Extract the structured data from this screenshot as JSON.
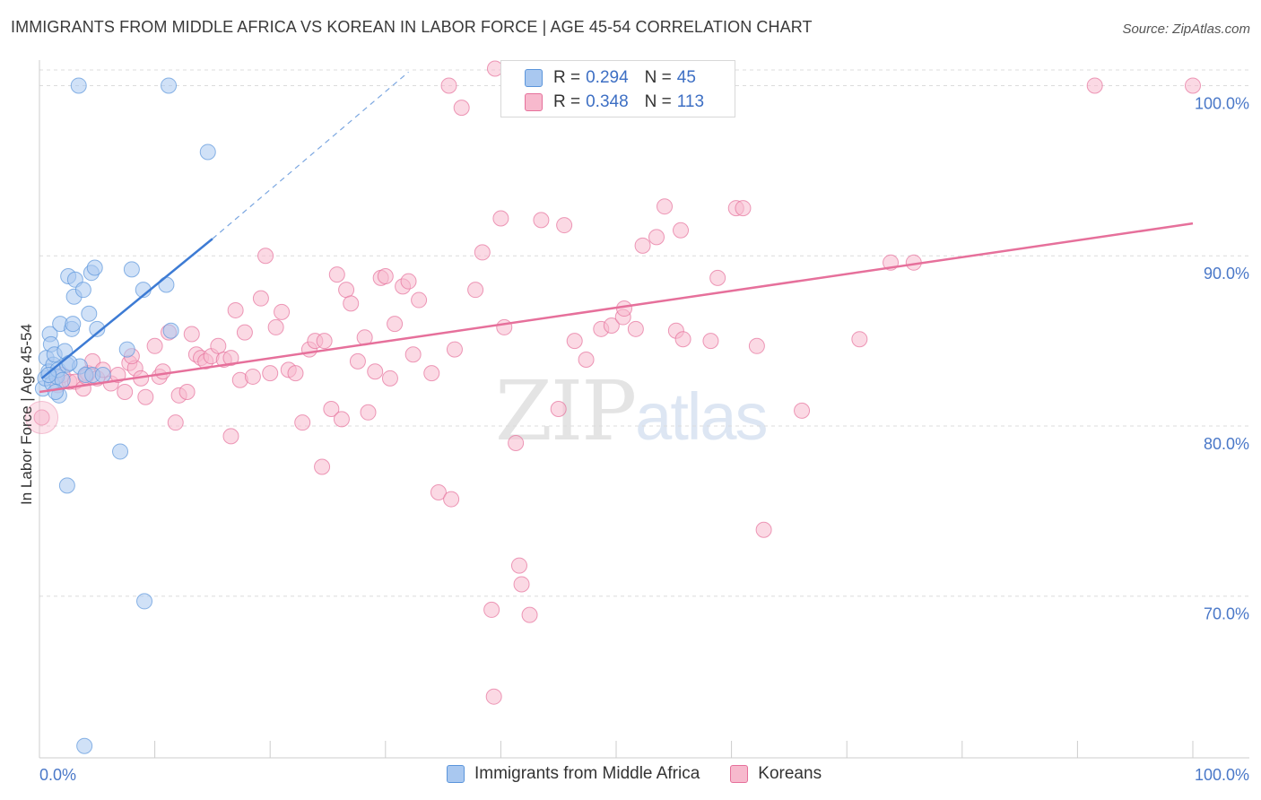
{
  "header": {
    "title": "IMMIGRANTS FROM MIDDLE AFRICA VS KOREAN IN LABOR FORCE | AGE 45-54 CORRELATION CHART",
    "source": "Source: ZipAtlas.com"
  },
  "watermark": {
    "zip": "ZIP",
    "atlas": "atlas"
  },
  "legend_top": {
    "rows": [
      {
        "r_label": "R =",
        "r_value": "0.294",
        "n_label": "N =",
        "n_value": "45",
        "color": "#a9c8f0"
      },
      {
        "r_label": "R =",
        "r_value": "0.348",
        "n_label": "N =",
        "n_value": "113",
        "color": "#f7b9cd"
      }
    ]
  },
  "legend_bottom": [
    {
      "label": "Immigrants from Middle Africa",
      "color": "#a9c8f0"
    },
    {
      "label": "Koreans",
      "color": "#f7b9cd"
    }
  ],
  "chart_data": {
    "type": "scatter",
    "title": "IMMIGRANTS FROM MIDDLE AFRICA VS KOREAN IN LABOR FORCE | AGE 45-54 CORRELATION CHART",
    "xlabel": "",
    "ylabel": "In Labor Force | Age 45-54",
    "xlim": [
      0,
      100
    ],
    "ylim": [
      60.5,
      101.5
    ],
    "x_tick_labels": [
      "0.0%",
      "100.0%"
    ],
    "y_ticks": [
      70,
      80,
      90,
      100
    ],
    "y_tick_labels": [
      "70.0%",
      "80.0%",
      "90.0%",
      "100.0%"
    ],
    "grid": true,
    "colors": {
      "blue": "#5b95db",
      "blue_fill": "#a9c8f0",
      "pink": "#e6709b",
      "pink_fill": "#f7b9cd",
      "tick": "#4a78c8"
    },
    "series": [
      {
        "name": "Immigrants from Middle Africa",
        "color": "#5b95db",
        "trend": {
          "x0": 0.2,
          "y0": 82.8,
          "x1": 15.0,
          "y1": 91.0,
          "dash_to_x": 32.0,
          "dash_to_y": 100.8
        },
        "points": [
          [
            0.3,
            82.2
          ],
          [
            0.5,
            82.8
          ],
          [
            0.6,
            84.0
          ],
          [
            0.8,
            83.2
          ],
          [
            0.9,
            85.4
          ],
          [
            1.0,
            84.8
          ],
          [
            1.1,
            82.5
          ],
          [
            1.2,
            83.6
          ],
          [
            1.3,
            84.2
          ],
          [
            1.5,
            82.9
          ],
          [
            1.6,
            83.3
          ],
          [
            1.7,
            81.8
          ],
          [
            1.8,
            86.0
          ],
          [
            2.0,
            82.7
          ],
          [
            2.2,
            84.4
          ],
          [
            2.4,
            83.6
          ],
          [
            2.5,
            88.8
          ],
          [
            2.8,
            85.7
          ],
          [
            2.9,
            86.0
          ],
          [
            3.0,
            87.6
          ],
          [
            3.1,
            88.6
          ],
          [
            3.5,
            83.5
          ],
          [
            3.4,
            100.0
          ],
          [
            3.8,
            88.0
          ],
          [
            4.0,
            83.0
          ],
          [
            4.3,
            86.6
          ],
          [
            4.5,
            89.0
          ],
          [
            4.6,
            83.0
          ],
          [
            4.8,
            89.3
          ],
          [
            5.0,
            85.7
          ],
          [
            5.5,
            83.0
          ],
          [
            7.0,
            78.5
          ],
          [
            2.4,
            76.5
          ],
          [
            7.6,
            84.5
          ],
          [
            8.0,
            89.2
          ],
          [
            9.0,
            88.0
          ],
          [
            11.0,
            88.3
          ],
          [
            11.4,
            85.6
          ],
          [
            11.2,
            100.0
          ],
          [
            14.6,
            96.1
          ],
          [
            9.1,
            69.7
          ],
          [
            3.9,
            61.2
          ],
          [
            0.8,
            83.0
          ],
          [
            1.4,
            82.0
          ],
          [
            2.6,
            83.7
          ]
        ]
      },
      {
        "name": "Koreans",
        "color": "#e6709b",
        "trend": {
          "x0": 0.0,
          "y0": 82.0,
          "x1": 100.0,
          "y1": 91.9
        },
        "points": [
          [
            0.2,
            80.5
          ],
          [
            1.6,
            82.4
          ],
          [
            2.0,
            83.0
          ],
          [
            2.6,
            82.6
          ],
          [
            3.1,
            82.6
          ],
          [
            3.8,
            82.2
          ],
          [
            4.2,
            83.1
          ],
          [
            4.6,
            83.8
          ],
          [
            5.0,
            82.8
          ],
          [
            5.5,
            83.3
          ],
          [
            6.2,
            82.5
          ],
          [
            6.8,
            83.0
          ],
          [
            7.4,
            82.0
          ],
          [
            7.8,
            83.7
          ],
          [
            8.3,
            83.4
          ],
          [
            8.8,
            82.8
          ],
          [
            9.2,
            81.7
          ],
          [
            10.0,
            84.7
          ],
          [
            10.4,
            82.9
          ],
          [
            10.7,
            83.2
          ],
          [
            11.2,
            85.5
          ],
          [
            11.8,
            80.2
          ],
          [
            12.1,
            81.8
          ],
          [
            12.8,
            82.0
          ],
          [
            13.2,
            85.4
          ],
          [
            13.6,
            84.2
          ],
          [
            14.0,
            84.0
          ],
          [
            14.4,
            83.8
          ],
          [
            14.9,
            84.1
          ],
          [
            15.5,
            84.7
          ],
          [
            16.0,
            83.9
          ],
          [
            16.6,
            79.4
          ],
          [
            17.0,
            86.8
          ],
          [
            17.4,
            82.7
          ],
          [
            17.8,
            85.5
          ],
          [
            18.5,
            82.9
          ],
          [
            19.2,
            87.5
          ],
          [
            19.6,
            90.0
          ],
          [
            20.0,
            83.1
          ],
          [
            20.5,
            85.8
          ],
          [
            21.0,
            86.7
          ],
          [
            21.6,
            83.3
          ],
          [
            22.2,
            83.1
          ],
          [
            22.8,
            80.2
          ],
          [
            23.4,
            84.5
          ],
          [
            23.9,
            85.0
          ],
          [
            24.5,
            77.6
          ],
          [
            24.7,
            85.0
          ],
          [
            25.3,
            81.0
          ],
          [
            25.8,
            88.9
          ],
          [
            26.2,
            80.4
          ],
          [
            26.6,
            88.0
          ],
          [
            27.0,
            87.2
          ],
          [
            27.6,
            83.8
          ],
          [
            28.2,
            85.2
          ],
          [
            28.5,
            80.8
          ],
          [
            29.1,
            83.2
          ],
          [
            29.6,
            88.7
          ],
          [
            30.0,
            88.8
          ],
          [
            30.4,
            82.8
          ],
          [
            30.8,
            86.0
          ],
          [
            31.5,
            88.2
          ],
          [
            32.0,
            88.5
          ],
          [
            32.4,
            84.2
          ],
          [
            32.9,
            87.4
          ],
          [
            34.0,
            83.1
          ],
          [
            34.6,
            76.1
          ],
          [
            35.5,
            100.0
          ],
          [
            35.7,
            75.7
          ],
          [
            36.0,
            84.5
          ],
          [
            36.6,
            98.7
          ],
          [
            37.8,
            88.0
          ],
          [
            38.4,
            90.2
          ],
          [
            39.2,
            69.2
          ],
          [
            39.4,
            64.1
          ],
          [
            40.0,
            92.2
          ],
          [
            40.3,
            85.8
          ],
          [
            41.3,
            79.0
          ],
          [
            41.6,
            71.8
          ],
          [
            41.8,
            70.7
          ],
          [
            42.5,
            68.9
          ],
          [
            43.5,
            92.1
          ],
          [
            45.0,
            81.0
          ],
          [
            45.5,
            91.8
          ],
          [
            46.4,
            85.0
          ],
          [
            47.4,
            83.9
          ],
          [
            48.7,
            85.7
          ],
          [
            49.6,
            85.9
          ],
          [
            50.6,
            86.4
          ],
          [
            50.7,
            86.9
          ],
          [
            51.7,
            85.7
          ],
          [
            52.3,
            90.6
          ],
          [
            53.5,
            91.1
          ],
          [
            54.2,
            92.9
          ],
          [
            55.2,
            85.6
          ],
          [
            55.6,
            91.5
          ],
          [
            55.8,
            85.1
          ],
          [
            58.2,
            85.0
          ],
          [
            58.8,
            88.7
          ],
          [
            60.4,
            92.8
          ],
          [
            61.0,
            92.8
          ],
          [
            62.2,
            84.7
          ],
          [
            62.8,
            73.9
          ],
          [
            66.1,
            80.9
          ],
          [
            71.1,
            85.1
          ],
          [
            73.8,
            89.6
          ],
          [
            75.8,
            89.6
          ],
          [
            91.5,
            100.0
          ],
          [
            100.0,
            100.0
          ],
          [
            39.5,
            101.0
          ],
          [
            16.6,
            84.0
          ],
          [
            8.0,
            84.1
          ],
          [
            4.0,
            82.9
          ]
        ]
      }
    ]
  }
}
